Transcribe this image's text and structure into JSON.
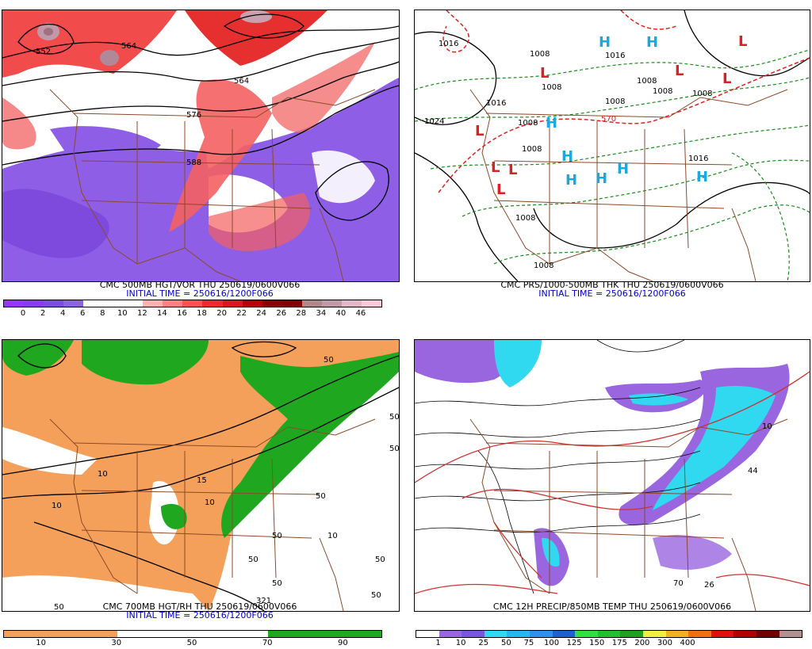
{
  "panels": [
    {
      "id": "vor",
      "caption1": "CMC 500MB HGT/VOR THU 250619/0600V066",
      "caption2": "INITIAL TIME = 250616/1200F066",
      "colorbar": {
        "colors": [
          "#9a33ff",
          "#8a3bf0",
          "#7b4ce0",
          "#8a63df",
          "#ffffff",
          "#ffffff",
          "#ffffff",
          "#ffb0b0",
          "#ff8080",
          "#ff5050",
          "#ee2a2a",
          "#d81818",
          "#b80000",
          "#880000",
          "#800000",
          "#b08888",
          "#c09aa8",
          "#e0b8c8",
          "#ffc8d8"
        ],
        "labels": [
          "0",
          "2",
          "4",
          "6",
          "8",
          "10",
          "12",
          "14",
          "16",
          "18",
          "20",
          "22",
          "24",
          "26",
          "28",
          "34",
          "40",
          "46"
        ]
      },
      "contour_labels": [
        "552",
        "564",
        "564",
        "576",
        "588"
      ]
    },
    {
      "id": "prs",
      "caption1": "CMC PRS/1000-500MB THK THU 250619/0600V066",
      "caption2": "INITIAL TIME = 250616/1200F066",
      "pressure_labels": [
        "1016",
        "1008",
        "1016",
        "1008",
        "1008",
        "1008",
        "1016",
        "1024",
        "1008",
        "1008",
        "1008",
        "1016",
        "1008",
        "1008",
        "1008"
      ],
      "thickness_labels": [
        "570"
      ],
      "highs": "H",
      "lows": "L"
    },
    {
      "id": "rh",
      "caption1": "CMC 700MB HGT/RH THU 250619/0600V066",
      "caption2": "INITIAL TIME = 250616/1200F066",
      "colorbar": {
        "colors": [
          "#f5a05a",
          "#f5a05a",
          "#f5a05a",
          "#ffffff",
          "#ffffff",
          "#ffffff",
          "#ffffff",
          "#1fa81f",
          "#1fa81f",
          "#1fa81f"
        ],
        "labels": [
          "10",
          "30",
          "50",
          "70",
          "90"
        ]
      },
      "contour_labels": [
        "50",
        "50",
        "10",
        "10",
        "15",
        "10",
        "50",
        "50",
        "50",
        "10",
        "50",
        "50",
        "321",
        "50",
        "50",
        "50"
      ]
    },
    {
      "id": "precip",
      "caption1": "CMC 12H PRECIP/850MB TEMP THU 250619/0600V066",
      "caption2": "",
      "colorbar": {
        "colors": [
          "#ffffff",
          "#9a66e0",
          "#7a55e0",
          "#30d8f0",
          "#25b8f0",
          "#3090ee",
          "#2060d0",
          "#30e040",
          "#20c030",
          "#20a020",
          "#f0f040",
          "#f0b020",
          "#f07010",
          "#e01010",
          "#b00000",
          "#700000",
          "#b09090"
        ],
        "labels": [
          "1",
          "10",
          "25",
          "50",
          "75",
          "100",
          "125",
          "150",
          "175",
          "200",
          "300",
          "400"
        ]
      },
      "contour_labels": [
        "10",
        "44",
        "70",
        "26"
      ]
    }
  ]
}
